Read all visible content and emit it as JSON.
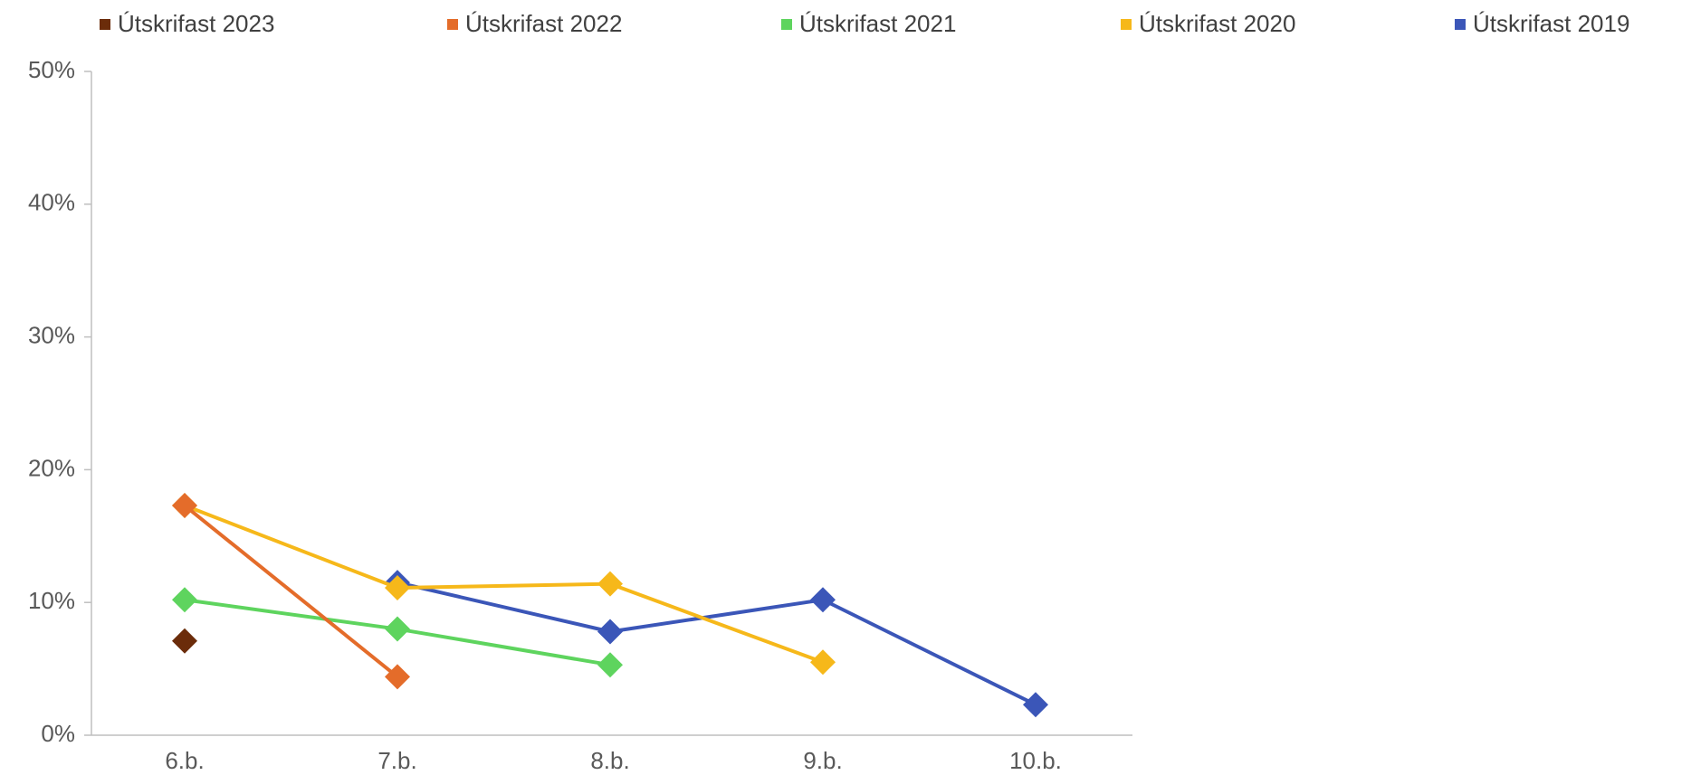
{
  "chart_data": {
    "type": "line",
    "categories": [
      "6.b.",
      "7.b.",
      "8.b.",
      "9.b.",
      "10.b."
    ],
    "series": [
      {
        "name": "Útskrifast 2023",
        "color": "#6b2c0a",
        "values": [
          7.1,
          null,
          null,
          null,
          null
        ]
      },
      {
        "name": "Útskrifast 2022",
        "color": "#e46c2a",
        "values": [
          17.3,
          4.4,
          null,
          null,
          null
        ]
      },
      {
        "name": "Útskrifast 2021",
        "color": "#5ed45e",
        "values": [
          10.2,
          8.0,
          5.3,
          null,
          null
        ]
      },
      {
        "name": "Útskrifast 2020",
        "color": "#f6b81a",
        "values": [
          17.3,
          11.1,
          11.4,
          5.5,
          null
        ]
      },
      {
        "name": "Útskrifast 2019",
        "color": "#3b56b8",
        "values": [
          null,
          11.5,
          7.8,
          10.2,
          2.3
        ]
      }
    ],
    "ylim": [
      0,
      50
    ],
    "yticks": [
      {
        "value": 0,
        "label": "0%"
      },
      {
        "value": 10,
        "label": "10%"
      },
      {
        "value": 20,
        "label": "20%"
      },
      {
        "value": 30,
        "label": "30%"
      },
      {
        "value": 40,
        "label": "40%"
      },
      {
        "value": 50,
        "label": "50%"
      }
    ],
    "legend": "top"
  }
}
